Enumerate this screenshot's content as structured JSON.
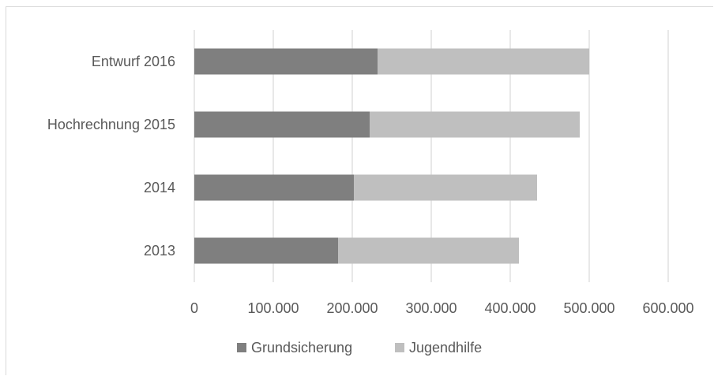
{
  "chart_data": {
    "type": "bar",
    "orientation": "horizontal",
    "stacked": true,
    "categories": [
      "2013",
      "2014",
      "Hochrechnung 2015",
      "Entwurf 2016"
    ],
    "series": [
      {
        "name": "Grundsicherung",
        "values": [
          182000,
          202000,
          222000,
          232000
        ],
        "color": "#7f7f7f"
      },
      {
        "name": "Jugendhilfe",
        "values": [
          229000,
          232000,
          266000,
          268000
        ],
        "color": "#bfbfbf"
      }
    ],
    "xlim": [
      0,
      600000
    ],
    "xticks": [
      "0",
      "100.000",
      "200.000",
      "300.000",
      "400.000",
      "500.000",
      "600.000"
    ],
    "grid": true,
    "legend": "bottom",
    "title": "",
    "xlabel": "",
    "ylabel": ""
  }
}
